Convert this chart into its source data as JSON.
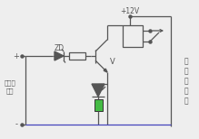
{
  "bg_color": "#eeeeee",
  "line_color": "#555555",
  "blue_line_color": "#4444bb",
  "green_rect_color": "#44bb44",
  "text_zd": "ZD",
  "text_v": "V",
  "text_plus12v": "+12V",
  "text_left1": "未稳压",
  "text_left2": "输入",
  "text_right": [
    "开",
    "关",
    "稳",
    "压",
    "器"
  ],
  "plus_label": "+",
  "minus_label": "-"
}
